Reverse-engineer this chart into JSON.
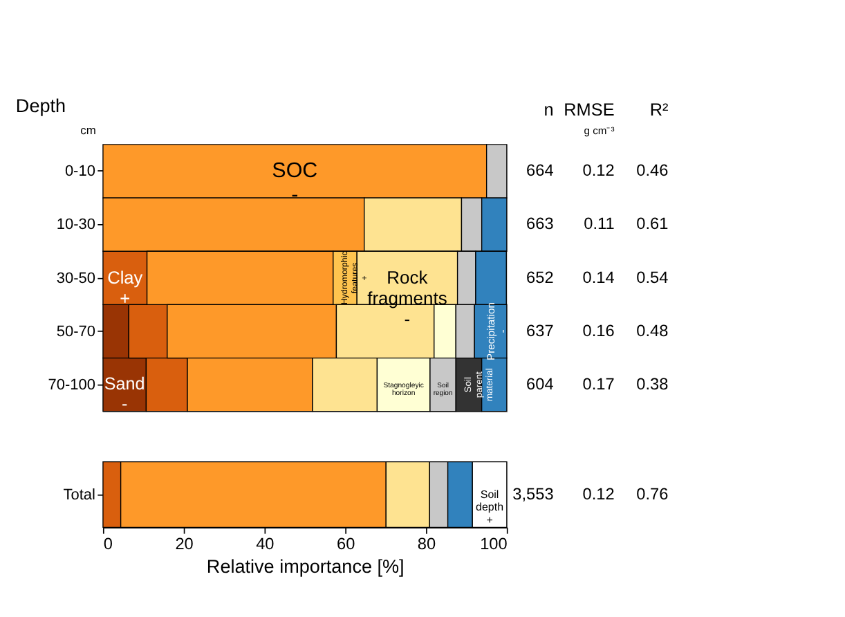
{
  "chart_data": [
    {
      "type": "bar",
      "orientation": "horizontal",
      "stacked": true,
      "ylabel": "Depth",
      "categories": [
        "0-10",
        "10-30",
        "30-50",
        "50-70",
        "70-100"
      ],
      "xlim": [
        0,
        100
      ],
      "tick_labels": "y",
      "series": [
        {
          "name": "Sand -",
          "color": "#993404",
          "values": [
            null,
            null,
            null,
            6.4,
            10.7
          ]
        },
        {
          "name": "Clay +",
          "color": "#d95f0e",
          "values": [
            null,
            null,
            10.9,
            9.5,
            10.2
          ]
        },
        {
          "name": "SOC -",
          "color": "#fe9929",
          "values": [
            95,
            64.7,
            46.1,
            41.9,
            31
          ]
        },
        {
          "name": "Hydromorphic features +",
          "color": "#fec44f",
          "values": [
            null,
            null,
            5.9,
            null,
            null
          ]
        },
        {
          "name": "Rock fragments -",
          "color": "#fee391",
          "values": [
            null,
            24.1,
            24.9,
            24.2,
            16
          ]
        },
        {
          "name": "Stagnogleyic horizon",
          "color": "#ffffd4",
          "values": [
            null,
            null,
            null,
            5.4,
            13.1
          ]
        },
        {
          "name": "Soil region",
          "color": "#c8c8c8",
          "values": [
            5,
            5,
            4.5,
            4.6,
            6.4
          ]
        },
        {
          "name": "Soil parent material",
          "color": "#333333",
          "values": [
            null,
            null,
            null,
            null,
            6.4
          ]
        },
        {
          "name": "Precipitation -",
          "color": "#3182bd",
          "values": [
            null,
            6.2,
            7.6,
            8.0,
            6.2
          ]
        }
      ],
      "annotations": [
        "cm",
        "n",
        "RMSE",
        "g cm⁻³",
        "R²",
        "664",
        "0.12",
        "0.46",
        "663",
        "0.11",
        "0.61",
        "652",
        "0.14",
        "0.54",
        "637",
        "0.16",
        "0.48",
        "604",
        "0.17",
        "0.38"
      ]
    },
    {
      "type": "bar",
      "orientation": "horizontal",
      "stacked": true,
      "categories": [
        "Total"
      ],
      "xlabel": "Relative importance [%]",
      "xlim": [
        0,
        100
      ],
      "xticks": [
        0,
        20,
        40,
        60,
        80,
        100
      ],
      "series": [
        {
          "color": "#d95f0e",
          "values": [
            4.4
          ]
        },
        {
          "color": "#fe9929",
          "values": [
            65.7
          ]
        },
        {
          "color": "#fee391",
          "values": [
            10.8
          ]
        },
        {
          "color": "#c8c8c8",
          "values": [
            4.5
          ]
        },
        {
          "color": "#3182bd",
          "values": [
            6.1
          ]
        },
        {
          "name": "Soil depth +",
          "color": "#ffffff",
          "values": [
            8.5
          ]
        }
      ],
      "annotations": [
        "3,553",
        "0.12",
        "0.76"
      ]
    }
  ]
}
